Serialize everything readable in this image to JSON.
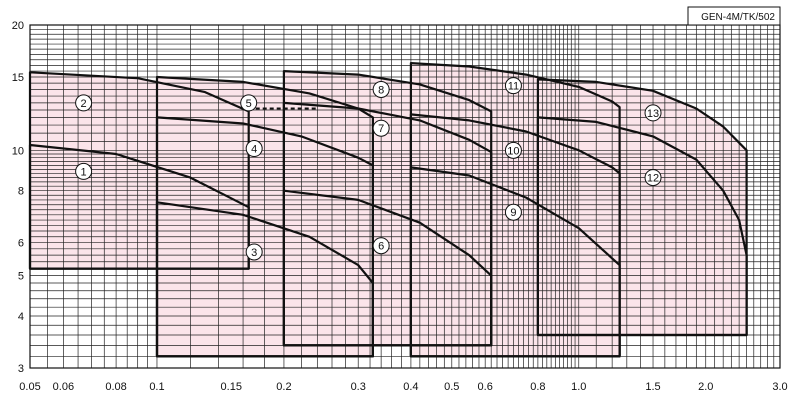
{
  "chart_data": {
    "type": "area",
    "title": "",
    "badge": "GEN-4M/TK/502",
    "xlabel": "",
    "ylabel": "",
    "x_scale": "log",
    "y_scale": "log",
    "xlim": [
      0.05,
      3.0
    ],
    "ylim": [
      3,
      20
    ],
    "grid": true,
    "fill_color": "#fbe4ea",
    "line_color": "#111111",
    "x_tick_values": [
      0.05,
      0.06,
      0.08,
      0.1,
      0.15,
      0.2,
      0.3,
      0.4,
      0.5,
      0.6,
      0.8,
      1.0,
      1.5,
      2.0,
      3.0
    ],
    "x_tick_labels": [
      "0.05",
      "0.06",
      "0.08",
      "0.1",
      "0.15",
      "0.2",
      "0.3",
      "0.4",
      "0.5",
      "0.6",
      "0.8",
      "1.0",
      "1.5",
      "2.0",
      "3.0"
    ],
    "y_tick_values": [
      3,
      4,
      5,
      6,
      8,
      10,
      15,
      20
    ],
    "y_tick_labels": [
      "3",
      "4",
      "5",
      "6",
      "8",
      "10",
      "15",
      "20"
    ],
    "regions": [
      {
        "label": "1",
        "label_at": [
          0.067,
          8.9
        ],
        "boundary": [
          [
            0.05,
            5.2
          ],
          [
            0.05,
            10.3
          ],
          [
            0.08,
            9.8
          ],
          [
            0.12,
            8.6
          ],
          [
            0.165,
            7.3
          ],
          [
            0.165,
            5.2
          ]
        ]
      },
      {
        "label": "2",
        "label_at": [
          0.067,
          13.0
        ],
        "boundary": [
          [
            0.05,
            5.2
          ],
          [
            0.05,
            15.4
          ],
          [
            0.09,
            14.9
          ],
          [
            0.13,
            13.8
          ],
          [
            0.165,
            12.4
          ],
          [
            0.165,
            5.2
          ]
        ]
      },
      {
        "label": "3",
        "label_at": [
          0.17,
          5.7
        ],
        "boundary": [
          [
            0.1,
            3.2
          ],
          [
            0.1,
            7.5
          ],
          [
            0.16,
            7.0
          ],
          [
            0.23,
            6.2
          ],
          [
            0.3,
            5.3
          ],
          [
            0.325,
            4.8
          ],
          [
            0.325,
            3.2
          ]
        ]
      },
      {
        "label": "4",
        "label_at": [
          0.17,
          10.1
        ],
        "boundary": [
          [
            0.1,
            3.2
          ],
          [
            0.1,
            12.0
          ],
          [
            0.16,
            11.6
          ],
          [
            0.22,
            10.8
          ],
          [
            0.3,
            9.6
          ],
          [
            0.325,
            9.2
          ],
          [
            0.325,
            3.2
          ]
        ]
      },
      {
        "label": "5",
        "label_at": [
          0.165,
          13.0
        ],
        "boundary": [
          [
            0.1,
            3.2
          ],
          [
            0.1,
            15.0
          ],
          [
            0.16,
            14.6
          ],
          [
            0.23,
            13.7
          ],
          [
            0.3,
            12.6
          ],
          [
            0.325,
            12.0
          ],
          [
            0.325,
            3.2
          ]
        ]
      },
      {
        "label": "6",
        "label_at": [
          0.34,
          5.9
        ],
        "boundary": [
          [
            0.2,
            3.4
          ],
          [
            0.2,
            8.0
          ],
          [
            0.3,
            7.6
          ],
          [
            0.42,
            6.7
          ],
          [
            0.55,
            5.6
          ],
          [
            0.62,
            5.0
          ],
          [
            0.62,
            3.4
          ]
        ]
      },
      {
        "label": "7",
        "label_at": [
          0.34,
          11.3
        ],
        "boundary": [
          [
            0.2,
            3.4
          ],
          [
            0.2,
            13.0
          ],
          [
            0.3,
            12.6
          ],
          [
            0.42,
            11.8
          ],
          [
            0.55,
            10.6
          ],
          [
            0.62,
            9.9
          ],
          [
            0.62,
            3.4
          ]
        ]
      },
      {
        "label": "8",
        "label_at": [
          0.34,
          14.0
        ],
        "boundary": [
          [
            0.2,
            3.4
          ],
          [
            0.2,
            15.5
          ],
          [
            0.3,
            15.2
          ],
          [
            0.42,
            14.4
          ],
          [
            0.55,
            13.2
          ],
          [
            0.62,
            12.4
          ],
          [
            0.62,
            3.4
          ]
        ]
      },
      {
        "label": "9",
        "label_at": [
          0.7,
          7.1
        ],
        "boundary": [
          [
            0.4,
            3.2
          ],
          [
            0.4,
            9.1
          ],
          [
            0.55,
            8.7
          ],
          [
            0.75,
            7.7
          ],
          [
            1.0,
            6.5
          ],
          [
            1.2,
            5.5
          ],
          [
            1.25,
            5.3
          ],
          [
            1.25,
            3.2
          ]
        ]
      },
      {
        "label": "10",
        "label_at": [
          0.7,
          10.0
        ],
        "boundary": [
          [
            0.4,
            3.2
          ],
          [
            0.4,
            12.2
          ],
          [
            0.55,
            11.8
          ],
          [
            0.75,
            11.1
          ],
          [
            1.0,
            10.0
          ],
          [
            1.2,
            9.1
          ],
          [
            1.25,
            8.8
          ],
          [
            1.25,
            3.2
          ]
        ]
      },
      {
        "label": "11",
        "label_at": [
          0.7,
          14.3
        ],
        "boundary": [
          [
            0.4,
            3.2
          ],
          [
            0.4,
            16.2
          ],
          [
            0.55,
            15.9
          ],
          [
            0.75,
            15.2
          ],
          [
            1.0,
            14.2
          ],
          [
            1.2,
            13.1
          ],
          [
            1.25,
            12.7
          ],
          [
            1.25,
            3.2
          ]
        ]
      },
      {
        "label": "12",
        "label_at": [
          1.5,
          8.6
        ],
        "boundary": [
          [
            0.8,
            3.6
          ],
          [
            0.8,
            12.0
          ],
          [
            1.1,
            11.7
          ],
          [
            1.5,
            10.8
          ],
          [
            1.9,
            9.5
          ],
          [
            2.2,
            8.0
          ],
          [
            2.4,
            6.8
          ],
          [
            2.5,
            5.6
          ],
          [
            2.5,
            3.6
          ]
        ]
      },
      {
        "label": "13",
        "label_at": [
          1.5,
          12.3
        ],
        "boundary": [
          [
            0.8,
            3.6
          ],
          [
            0.8,
            14.8
          ],
          [
            1.1,
            14.6
          ],
          [
            1.5,
            13.9
          ],
          [
            1.9,
            12.6
          ],
          [
            2.2,
            11.4
          ],
          [
            2.5,
            10.0
          ],
          [
            2.5,
            3.6
          ]
        ]
      }
    ],
    "dashed_segment": [
      [
        0.165,
        12.6
      ],
      [
        0.24,
        12.6
      ]
    ]
  }
}
